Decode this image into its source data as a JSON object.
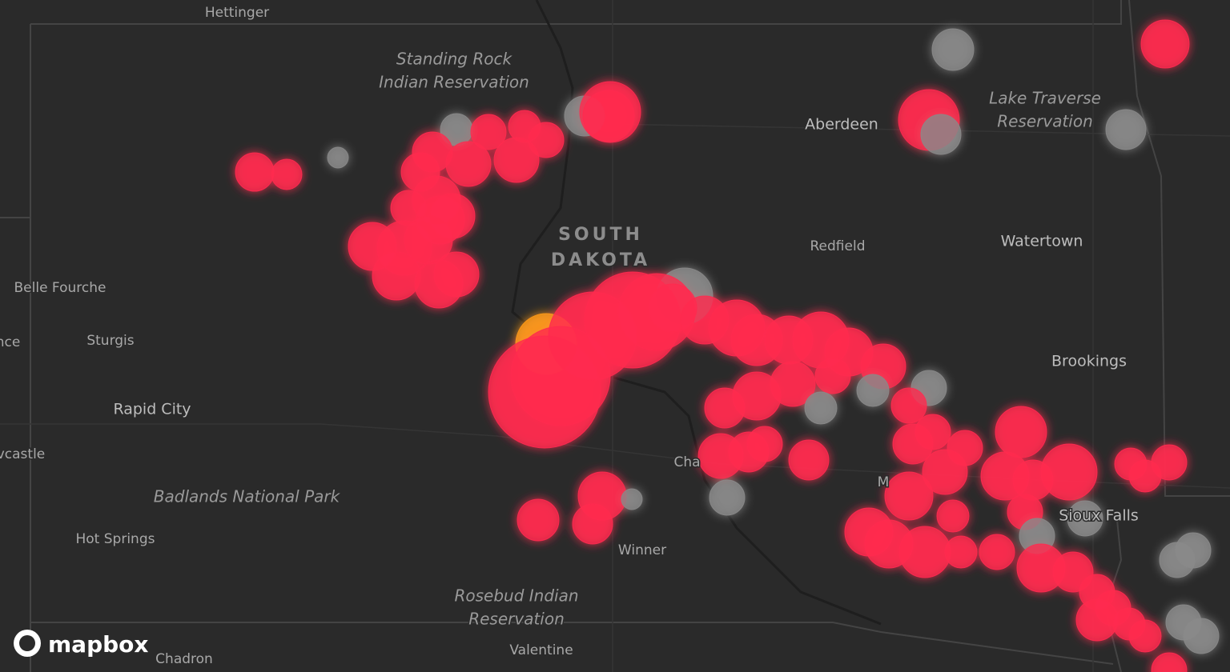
{
  "map": {
    "labels": {
      "hettinger": "Hettinger",
      "standing_rock": [
        "Standing Rock",
        "Indian Reservation"
      ],
      "state": [
        "SOUTH",
        "DAKOTA"
      ],
      "aberdeen": "Aberdeen",
      "lake_traverse": [
        "Lake Traverse",
        "Reservation"
      ],
      "redfield": "Redfield",
      "watertown": "Watertown",
      "belle_fourche": "Belle Fourche",
      "sturgis": "Sturgis",
      "nce": "nce",
      "rapid_city": "Rapid City",
      "brookings": "Brookings",
      "newcastle": "vcastle",
      "badlands": "Badlands National Park",
      "hot_springs": "Hot Springs",
      "chamberlain": "Cha",
      "mitchell": "M",
      "sioux_falls": "Sioux Falls",
      "winner": "Winner",
      "rosebud": [
        "Rosebud Indian",
        "Reservation"
      ],
      "valentine": "Valentine",
      "chadron": "Chadron"
    },
    "logo": "mapbox"
  }
}
